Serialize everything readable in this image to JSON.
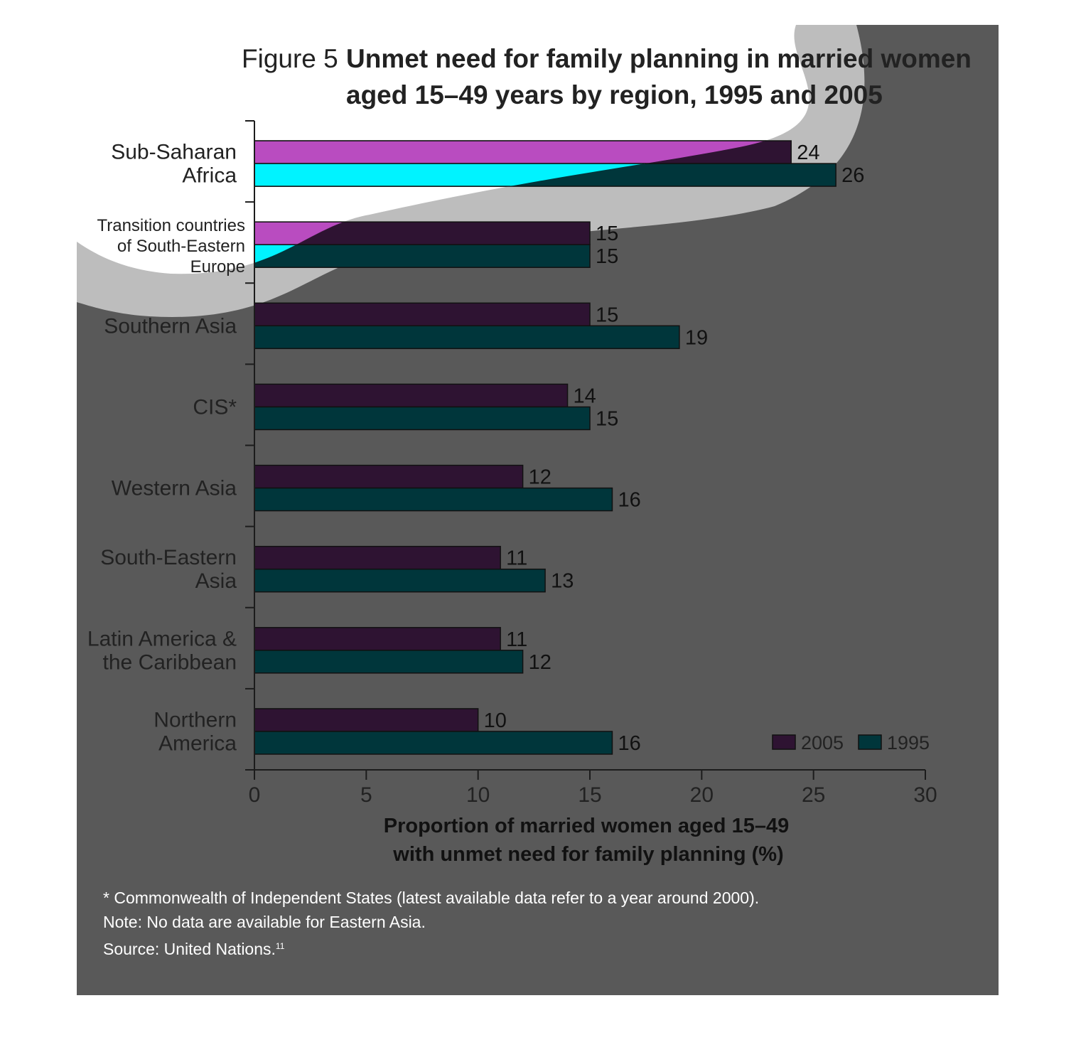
{
  "figure": {
    "label": "Figure 5",
    "title_line1": "Unmet need for family planning in married women",
    "title_line2": "aged 15–49 years by region, 1995 and 2005"
  },
  "chart_data": {
    "type": "bar",
    "orientation": "horizontal",
    "categories": [
      "Sub-Saharan Africa",
      "Transition countries of South-Eastern Europe",
      "Southern Asia",
      "CIS*",
      "Western Asia",
      "South-Eastern Asia",
      "Latin America & the Caribbean",
      "Northern America"
    ],
    "category_label_lines": [
      [
        "Sub-Saharan",
        "Africa"
      ],
      [
        "Transition countries",
        "of South-Eastern",
        "Europe"
      ],
      [
        "Southern Asia"
      ],
      [
        "CIS*"
      ],
      [
        "Western Asia"
      ],
      [
        "South-Eastern",
        "Asia"
      ],
      [
        "Latin America &",
        "the Caribbean"
      ],
      [
        "Northern",
        "America"
      ]
    ],
    "series": [
      {
        "name": "2005",
        "color": "#2e1332",
        "values": [
          24,
          15,
          15,
          14,
          12,
          11,
          11,
          10
        ]
      },
      {
        "name": "1995",
        "color": "#00363b",
        "values": [
          26,
          15,
          19,
          15,
          16,
          13,
          12,
          16
        ]
      }
    ],
    "xlabel_line1": "Proportion of married women aged 15–49",
    "xlabel_line2": "with unmet need for family planning (%)",
    "xlim": [
      0,
      30
    ],
    "xticks": [
      0,
      5,
      10,
      15,
      20,
      25,
      30
    ],
    "legend_position": "bottom-right",
    "grid": false
  },
  "notes": {
    "footnote": "* Commonwealth of Independent States (latest available data refer to a year around 2000).",
    "note": "Note: No data are available for Eastern Asia.",
    "source": "Source: United Nations.",
    "source_ref": "11"
  },
  "colors": {
    "panel": "#595959",
    "overlay_band": "#bdbdbd",
    "highlight_2005": "#b94cc0",
    "highlight_1995": "#00f3ff",
    "axis": "#1c1c1c",
    "title": "#222222"
  }
}
